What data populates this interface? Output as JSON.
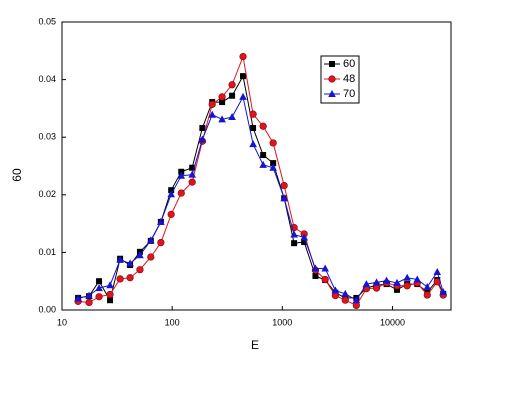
{
  "chart_data": {
    "type": "line",
    "xlabel": "E",
    "ylabel": "60",
    "xscale": "log",
    "legend": "upper right",
    "x": [
      14,
      17.6,
      21.7,
      27.3,
      33.7,
      41.5,
      51,
      64,
      79,
      98,
      121,
      152,
      188,
      231,
      284,
      350,
      440,
      543,
      670,
      826,
      1040,
      1280,
      1580,
      2000,
      2450,
      3030,
      3730,
      4700,
      5800,
      7170,
      8840,
      11000,
      13600,
      16800,
      20700,
      25500,
      28900
    ],
    "series": [
      {
        "name": "60",
        "color": "#000000",
        "marker": "square",
        "values": [
          0.0021,
          0.0024,
          0.005,
          0.0017,
          0.0089,
          0.0078,
          0.0101,
          0.012,
          0.0153,
          0.0208,
          0.024,
          0.0247,
          0.0316,
          0.0361,
          0.0361,
          0.0372,
          0.0406,
          0.0316,
          0.0269,
          0.0255,
          0.0194,
          0.0116,
          0.0118,
          0.0059,
          0.0052,
          0.003,
          0.0021,
          0.0021,
          0.0038,
          0.0043,
          0.0045,
          0.0035,
          0.0045,
          0.0045,
          0.0031,
          0.0052,
          0.0028
        ]
      },
      {
        "name": "48",
        "color": "#e0141e",
        "marker": "circle",
        "values": [
          0.0015,
          0.0013,
          0.0023,
          0.0027,
          0.0054,
          0.0056,
          0.007,
          0.0092,
          0.0117,
          0.0166,
          0.0203,
          0.0222,
          0.0293,
          0.0357,
          0.037,
          0.0391,
          0.044,
          0.034,
          0.0319,
          0.029,
          0.0216,
          0.0143,
          0.0132,
          0.0069,
          0.0053,
          0.0025,
          0.0017,
          0.0008,
          0.0037,
          0.0038,
          0.0047,
          0.0042,
          0.0042,
          0.0047,
          0.0026,
          0.0049,
          0.0026
        ]
      },
      {
        "name": "70",
        "color": "#1414d2",
        "marker": "triangle",
        "values": [
          0.002,
          0.0025,
          0.0038,
          0.0043,
          0.0087,
          0.0081,
          0.0095,
          0.0121,
          0.0153,
          0.0201,
          0.0233,
          0.0235,
          0.0296,
          0.0339,
          0.0331,
          0.0335,
          0.037,
          0.0288,
          0.0252,
          0.0247,
          0.0194,
          0.0131,
          0.0126,
          0.0072,
          0.0072,
          0.0034,
          0.0028,
          0.0017,
          0.0045,
          0.0048,
          0.0051,
          0.0047,
          0.0056,
          0.0053,
          0.004,
          0.0066,
          0.0031
        ]
      }
    ],
    "xlim": [
      10,
      34000
    ],
    "xticks": [
      10,
      100,
      1000,
      10000
    ],
    "ylim": [
      0,
      0.05
    ],
    "yticks": [
      {
        "value": 0,
        "label": "0.00"
      },
      0.01,
      0.02,
      0.03,
      0.04,
      0.05
    ]
  }
}
